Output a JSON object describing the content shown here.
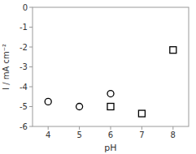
{
  "chart_data": {
    "type": "scatter",
    "xlabel": "pH",
    "ylabel": "I / mA cm⁻²",
    "xlim": [
      3.5,
      8.5
    ],
    "ylim": [
      -6,
      0
    ],
    "xticks": [
      4,
      5,
      6,
      7,
      8
    ],
    "yticks": [
      0,
      -1,
      -2,
      -3,
      -4,
      -5,
      -6
    ],
    "series": [
      {
        "x": [
          4,
          5,
          6
        ],
        "values": [
          -4.75,
          -5.0,
          -4.35
        ],
        "color": "black",
        "marker": "circle"
      },
      {
        "x": [
          6,
          7,
          8
        ],
        "values": [
          -5.0,
          -5.35,
          -2.15
        ],
        "color": "black",
        "marker": "square"
      }
    ]
  }
}
